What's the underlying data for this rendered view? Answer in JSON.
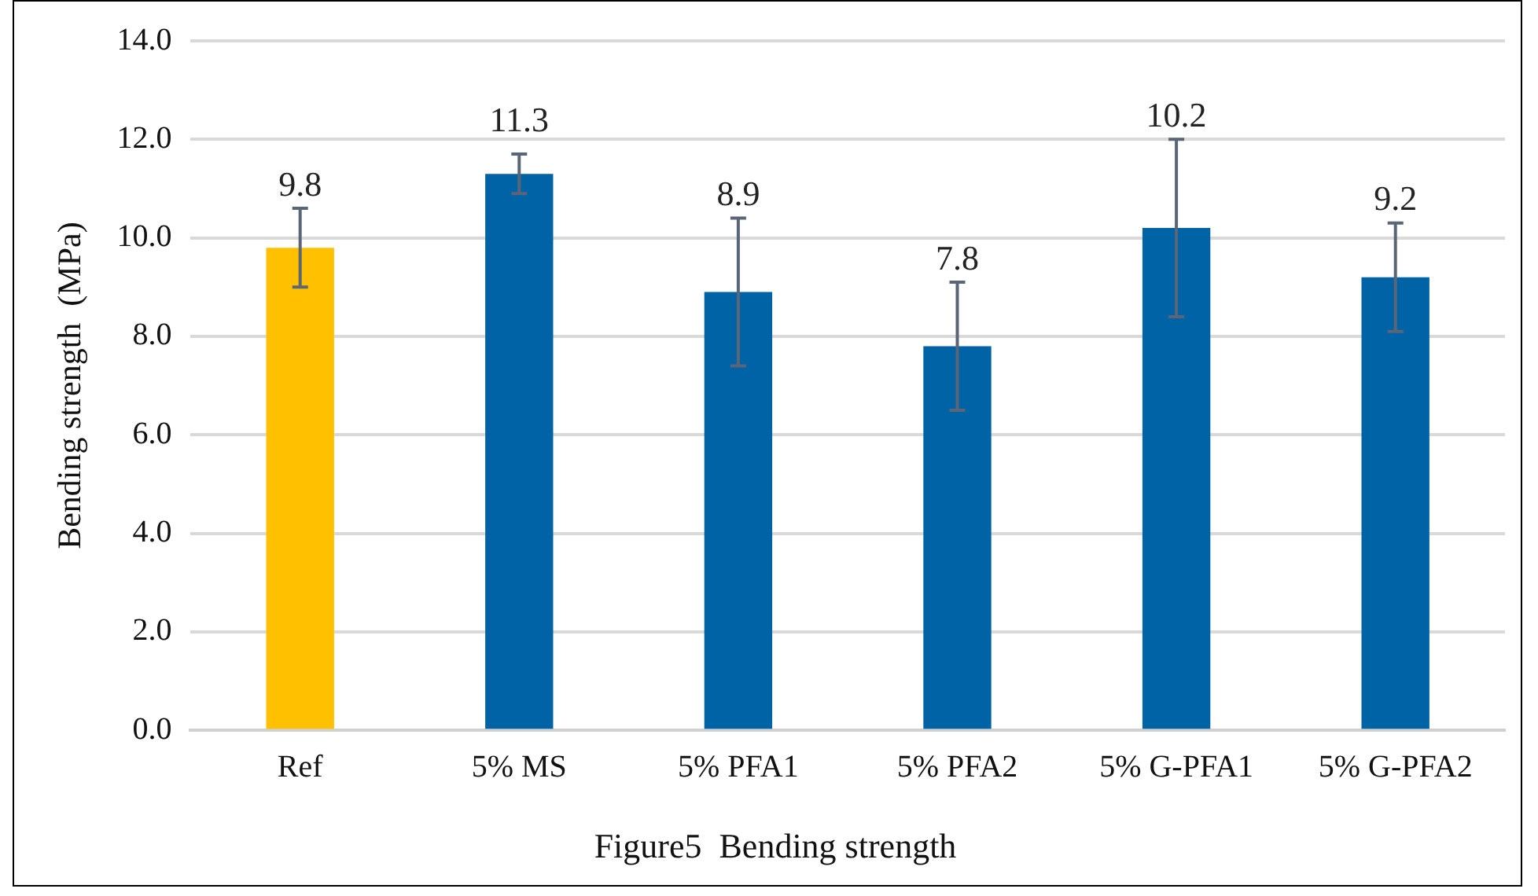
{
  "chart_data": {
    "type": "bar",
    "title": "Figure5  Bending strength",
    "ylabel": "Bending strength  (MPa)",
    "categories": [
      "Ref",
      "5% MS",
      "5% PFA1",
      "5% PFA2",
      "5% G-PFA1",
      "5% G-PFA2"
    ],
    "values": [
      9.8,
      11.3,
      8.9,
      7.8,
      10.2,
      9.2
    ],
    "colors": [
      "#ffc000",
      "#0063a6",
      "#0063a6",
      "#0063a6",
      "#0063a6",
      "#0063a6"
    ],
    "errors": [
      0.8,
      0.4,
      1.5,
      1.3,
      1.8,
      1.1
    ],
    "ylim": [
      0,
      14
    ],
    "yticks": [
      {
        "value": 0,
        "label": "0.0"
      },
      {
        "value": 2,
        "label": "2.0"
      },
      {
        "value": 4,
        "label": "4.0"
      },
      {
        "value": 6,
        "label": "6.0"
      },
      {
        "value": 8,
        "label": "8.0"
      },
      {
        "value": 10,
        "label": "10.0"
      },
      {
        "value": 12,
        "label": "12.0"
      },
      {
        "value": 14,
        "label": "14.0"
      }
    ],
    "grid": "y",
    "legend": false,
    "data_labels": true
  }
}
